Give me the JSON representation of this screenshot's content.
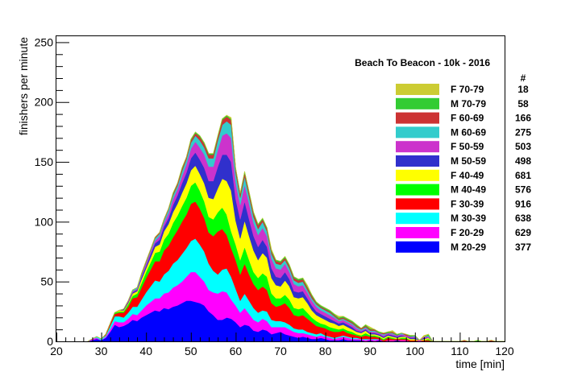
{
  "chart_data": {
    "type": "area",
    "stacked": true,
    "title": "Beach To Beacon - 10k - 2016",
    "xlabel": "time [min]",
    "ylabel": "finishers per minute",
    "xlim": [
      20,
      120
    ],
    "ylim": [
      0,
      255
    ],
    "xticks": [
      20,
      30,
      40,
      50,
      60,
      70,
      80,
      90,
      100,
      110,
      120
    ],
    "yticks": [
      0,
      50,
      100,
      150,
      200,
      250
    ],
    "legend_count_header": "#",
    "legend_position": "top-right",
    "x": [
      27,
      28,
      29,
      30,
      31,
      32,
      33,
      34,
      35,
      36,
      37,
      38,
      39,
      40,
      41,
      42,
      43,
      44,
      45,
      46,
      47,
      48,
      49,
      50,
      51,
      52,
      53,
      54,
      55,
      56,
      57,
      58,
      59,
      60,
      61,
      62,
      63,
      64,
      65,
      66,
      67,
      68,
      69,
      70,
      71,
      72,
      73,
      74,
      75,
      76,
      77,
      78,
      79,
      80,
      81,
      82,
      83,
      84,
      85,
      86,
      87,
      88,
      89,
      90,
      91,
      92,
      93,
      94,
      95,
      96,
      97,
      98,
      99,
      100,
      101,
      102,
      103,
      104,
      105,
      106,
      107,
      108,
      109,
      110,
      111,
      112,
      113,
      114,
      115,
      116,
      117,
      118,
      119,
      120
    ],
    "series": [
      {
        "name": "M 20-29",
        "count": "377",
        "color": "#0000ff",
        "values": [
          0,
          1,
          2,
          1,
          3,
          8,
          14,
          12,
          13,
          15,
          18,
          17,
          20,
          22,
          24,
          26,
          25,
          28,
          27,
          29,
          30,
          32,
          34,
          34,
          33,
          32,
          30,
          25,
          22,
          18,
          18,
          20,
          19,
          16,
          12,
          14,
          13,
          9,
          8,
          10,
          9,
          6,
          7,
          8,
          6,
          5,
          4,
          3,
          4,
          3,
          2,
          2,
          3,
          2,
          1,
          1,
          1,
          2,
          1,
          1,
          1,
          1,
          0,
          1,
          0,
          1,
          0,
          0,
          0,
          1,
          0,
          0,
          0,
          0,
          0,
          0,
          0,
          0,
          0,
          0,
          0,
          0,
          0,
          0,
          0,
          0,
          0,
          0,
          0,
          0,
          0,
          0,
          0,
          0
        ]
      },
      {
        "name": "F 20-29",
        "count": "629",
        "color": "#ff00ff",
        "values": [
          0,
          1,
          1,
          0,
          1,
          2,
          3,
          4,
          3,
          4,
          5,
          5,
          6,
          8,
          9,
          10,
          11,
          12,
          14,
          16,
          17,
          18,
          20,
          24,
          25,
          22,
          20,
          18,
          19,
          22,
          24,
          21,
          16,
          14,
          12,
          14,
          10,
          9,
          8,
          9,
          8,
          6,
          5,
          4,
          6,
          5,
          4,
          4,
          3,
          3,
          3,
          2,
          2,
          2,
          2,
          1,
          2,
          2,
          2,
          1,
          1,
          1,
          1,
          1,
          1,
          1,
          0,
          1,
          1,
          0,
          1,
          1,
          0,
          0,
          1,
          0,
          0,
          0,
          0,
          0,
          0,
          0,
          0,
          0,
          0,
          0,
          0,
          0,
          0,
          0,
          0,
          0,
          0,
          0
        ]
      },
      {
        "name": "M 30-39",
        "count": "638",
        "color": "#00ffff",
        "values": [
          0,
          0,
          1,
          1,
          1,
          3,
          4,
          5,
          4,
          5,
          6,
          7,
          9,
          11,
          13,
          15,
          14,
          16,
          18,
          20,
          21,
          23,
          24,
          26,
          28,
          27,
          25,
          22,
          18,
          16,
          18,
          20,
          19,
          14,
          10,
          12,
          11,
          10,
          8,
          7,
          8,
          6,
          5,
          5,
          4,
          4,
          3,
          3,
          3,
          2,
          2,
          2,
          2,
          1,
          1,
          1,
          1,
          1,
          1,
          1,
          1,
          0,
          1,
          0,
          1,
          0,
          0,
          0,
          0,
          0,
          0,
          0,
          0,
          0,
          0,
          0,
          0,
          0,
          0,
          0,
          0,
          0,
          0,
          0,
          0,
          0,
          0,
          0,
          0,
          0,
          0,
          0,
          0,
          0
        ]
      },
      {
        "name": "F 30-39",
        "count": "916",
        "color": "#ff0000",
        "values": [
          0,
          0,
          0,
          0,
          1,
          2,
          2,
          3,
          4,
          5,
          7,
          8,
          10,
          12,
          14,
          16,
          17,
          20,
          21,
          22,
          25,
          27,
          28,
          31,
          31,
          30,
          28,
          26,
          29,
          36,
          34,
          28,
          24,
          24,
          22,
          25,
          22,
          20,
          19,
          20,
          18,
          14,
          12,
          13,
          16,
          14,
          11,
          11,
          12,
          11,
          9,
          7,
          5,
          6,
          5,
          5,
          4,
          4,
          3,
          3,
          2,
          2,
          3,
          2,
          2,
          1,
          1,
          2,
          1,
          1,
          1,
          1,
          1,
          1,
          0,
          1,
          1,
          0,
          0,
          0,
          0,
          0,
          0,
          0,
          0,
          0,
          0,
          0,
          0,
          0,
          0,
          0,
          0,
          0
        ]
      },
      {
        "name": "M 40-49",
        "count": "576",
        "color": "#00ff00",
        "values": [
          0,
          0,
          0,
          0,
          0,
          0,
          1,
          1,
          1,
          2,
          2,
          3,
          4,
          5,
          6,
          7,
          8,
          9,
          10,
          12,
          12,
          13,
          14,
          15,
          16,
          15,
          14,
          13,
          14,
          16,
          18,
          17,
          14,
          13,
          12,
          14,
          12,
          10,
          10,
          11,
          11,
          8,
          7,
          6,
          7,
          7,
          6,
          6,
          6,
          5,
          4,
          4,
          3,
          3,
          3,
          3,
          2,
          2,
          2,
          2,
          1,
          1,
          2,
          1,
          1,
          1,
          1,
          1,
          1,
          0,
          1,
          1,
          0,
          0,
          0,
          0,
          1,
          0,
          0,
          0,
          0,
          0,
          0,
          0,
          0,
          0,
          0,
          0,
          0,
          0,
          0,
          0,
          0,
          0
        ]
      },
      {
        "name": "F 40-49",
        "count": "681",
        "color": "#ffff00",
        "values": [
          0,
          0,
          0,
          0,
          0,
          0,
          0,
          1,
          1,
          1,
          2,
          2,
          3,
          3,
          4,
          5,
          6,
          7,
          8,
          9,
          10,
          11,
          12,
          13,
          14,
          14,
          15,
          16,
          17,
          20,
          24,
          28,
          34,
          20,
          18,
          22,
          20,
          18,
          15,
          17,
          16,
          13,
          11,
          10,
          12,
          11,
          9,
          9,
          9,
          8,
          6,
          5,
          5,
          4,
          4,
          4,
          3,
          3,
          3,
          2,
          2,
          2,
          2,
          1,
          1,
          1,
          1,
          1,
          1,
          1,
          1,
          1,
          1,
          1,
          0,
          1,
          1,
          0,
          0,
          0,
          0,
          0,
          0,
          0,
          0,
          0,
          0,
          0,
          0,
          0,
          0,
          0,
          0,
          0
        ]
      },
      {
        "name": "M 50-59",
        "count": "498",
        "color": "#3030cc",
        "values": [
          0,
          0,
          0,
          0,
          0,
          0,
          0,
          0,
          1,
          1,
          1,
          1,
          2,
          2,
          3,
          3,
          4,
          4,
          5,
          6,
          7,
          8,
          9,
          10,
          11,
          12,
          13,
          14,
          15,
          18,
          20,
          22,
          24,
          18,
          16,
          16,
          14,
          12,
          11,
          11,
          9,
          8,
          7,
          7,
          7,
          6,
          5,
          5,
          5,
          4,
          4,
          3,
          3,
          3,
          3,
          2,
          2,
          2,
          2,
          2,
          1,
          1,
          1,
          1,
          1,
          1,
          1,
          1,
          1,
          1,
          1,
          0,
          1,
          1,
          0,
          1,
          0,
          0,
          0,
          0,
          0,
          0,
          0,
          0,
          0,
          0,
          0,
          0,
          0,
          0,
          0,
          0,
          0,
          0
        ]
      },
      {
        "name": "F 50-59",
        "count": "503",
        "color": "#cc33cc",
        "values": [
          0,
          0,
          0,
          0,
          0,
          0,
          0,
          0,
          0,
          1,
          1,
          1,
          1,
          2,
          2,
          2,
          3,
          3,
          4,
          5,
          5,
          6,
          7,
          8,
          9,
          10,
          11,
          12,
          12,
          14,
          16,
          18,
          20,
          14,
          12,
          14,
          13,
          11,
          10,
          10,
          9,
          8,
          7,
          7,
          7,
          6,
          6,
          5,
          5,
          5,
          4,
          4,
          3,
          3,
          3,
          3,
          2,
          2,
          2,
          2,
          2,
          1,
          1,
          1,
          1,
          1,
          1,
          1,
          1,
          1,
          1,
          1,
          1,
          1,
          0,
          1,
          1,
          0,
          0,
          0,
          0,
          0,
          0,
          0,
          0,
          0,
          0,
          0,
          0,
          0,
          0,
          0,
          0,
          0
        ]
      },
      {
        "name": "M 60-69",
        "count": "275",
        "color": "#33cccc",
        "values": [
          0,
          0,
          0,
          0,
          0,
          0,
          0,
          0,
          0,
          0,
          1,
          1,
          1,
          1,
          1,
          2,
          2,
          2,
          3,
          3,
          3,
          4,
          4,
          5,
          5,
          6,
          6,
          7,
          7,
          8,
          9,
          10,
          11,
          8,
          6,
          7,
          6,
          5,
          5,
          5,
          4,
          4,
          4,
          4,
          3,
          3,
          3,
          3,
          3,
          2,
          2,
          2,
          2,
          2,
          2,
          1,
          1,
          1,
          1,
          1,
          1,
          1,
          1,
          1,
          1,
          0,
          1,
          0,
          1,
          0,
          1,
          0,
          0,
          1,
          0,
          0,
          1,
          0,
          0,
          0,
          0,
          0,
          0,
          0,
          0,
          0,
          0,
          0,
          0,
          0,
          0,
          0,
          0,
          0
        ]
      },
      {
        "name": "F 60-69",
        "count": "166",
        "color": "#cc3333",
        "values": [
          0,
          0,
          0,
          0,
          0,
          0,
          0,
          0,
          0,
          0,
          0,
          0,
          1,
          1,
          1,
          1,
          1,
          1,
          1,
          1,
          2,
          2,
          2,
          2,
          2,
          3,
          3,
          3,
          3,
          3,
          4,
          4,
          4,
          3,
          3,
          3,
          3,
          3,
          3,
          2,
          2,
          2,
          2,
          2,
          2,
          2,
          2,
          2,
          2,
          2,
          2,
          1,
          1,
          1,
          1,
          1,
          1,
          1,
          1,
          1,
          1,
          1,
          1,
          1,
          1,
          0,
          1,
          0,
          1,
          0,
          0,
          1,
          0,
          0,
          0,
          0,
          0,
          0,
          0,
          0,
          0,
          0,
          0,
          0,
          1,
          0,
          0,
          0,
          0,
          0,
          1,
          0,
          0,
          0
        ]
      },
      {
        "name": "M 70-79",
        "count": "58",
        "color": "#33cc33",
        "values": [
          0,
          0,
          0,
          0,
          0,
          0,
          0,
          0,
          0,
          0,
          0,
          0,
          0,
          0,
          0,
          0,
          0,
          0,
          0,
          1,
          0,
          1,
          0,
          1,
          1,
          1,
          1,
          1,
          1,
          1,
          1,
          1,
          1,
          1,
          1,
          1,
          1,
          1,
          1,
          1,
          1,
          1,
          1,
          1,
          1,
          1,
          1,
          1,
          1,
          1,
          1,
          1,
          1,
          1,
          1,
          1,
          1,
          1,
          1,
          1,
          1,
          0,
          1,
          1,
          0,
          1,
          0,
          1,
          0,
          1,
          0,
          0,
          1,
          0,
          0,
          0,
          1,
          0,
          0,
          0,
          0,
          0,
          0,
          0,
          0,
          0,
          0,
          1,
          0,
          0,
          0,
          0,
          0,
          0
        ]
      },
      {
        "name": "F 70-79",
        "count": "18",
        "color": "#cccc33",
        "values": [
          0,
          0,
          0,
          0,
          0,
          0,
          0,
          0,
          0,
          0,
          0,
          0,
          0,
          0,
          0,
          0,
          0,
          0,
          0,
          0,
          0,
          0,
          0,
          0,
          0,
          0,
          0,
          0,
          0,
          0,
          0,
          0,
          1,
          0,
          0,
          0,
          0,
          0,
          0,
          0,
          0,
          1,
          0,
          0,
          0,
          0,
          0,
          0,
          0,
          1,
          0,
          0,
          0,
          0,
          0,
          0,
          1,
          0,
          0,
          0,
          0,
          0,
          0,
          1,
          0,
          0,
          0,
          0,
          1,
          0,
          0,
          0,
          0,
          0,
          0,
          1,
          0,
          0,
          0,
          0,
          0,
          0,
          0,
          0,
          0,
          0,
          0,
          0,
          0,
          0,
          0,
          0,
          0,
          0
        ]
      }
    ]
  }
}
